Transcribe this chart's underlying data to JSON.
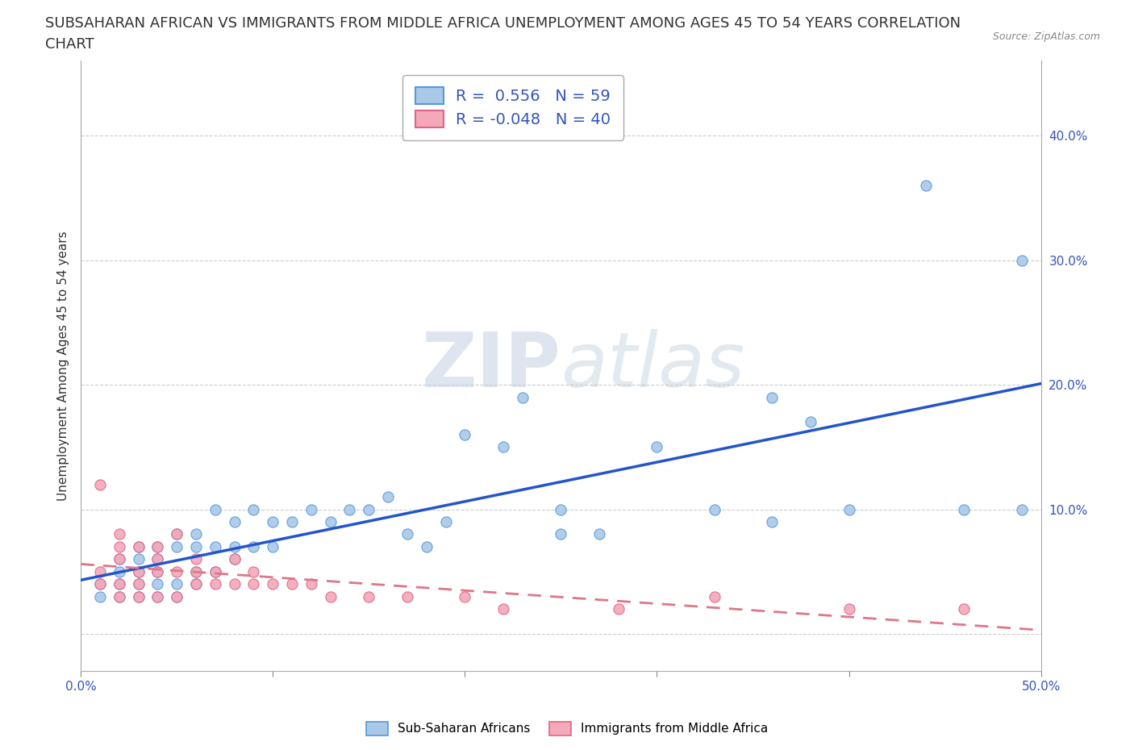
{
  "title_line1": "SUBSAHARAN AFRICAN VS IMMIGRANTS FROM MIDDLE AFRICA UNEMPLOYMENT AMONG AGES 45 TO 54 YEARS CORRELATION",
  "title_line2": "CHART",
  "source_text": "Source: ZipAtlas.com",
  "ylabel": "Unemployment Among Ages 45 to 54 years",
  "xlim": [
    0.0,
    0.5
  ],
  "ylim": [
    -0.03,
    0.46
  ],
  "xticks": [
    0.0,
    0.1,
    0.2,
    0.3,
    0.4,
    0.5
  ],
  "xticklabels": [
    "0.0%",
    "",
    "",
    "",
    "",
    "50.0%"
  ],
  "yticks": [
    0.0,
    0.1,
    0.2,
    0.3,
    0.4
  ],
  "yticklabels": [
    "",
    "10.0%",
    "20.0%",
    "30.0%",
    "40.0%"
  ],
  "r_blue": 0.556,
  "n_blue": 59,
  "r_pink": -0.048,
  "n_pink": 40,
  "blue_color": "#aac8e8",
  "pink_color": "#f4a8b8",
  "blue_line_color": "#2255cc",
  "pink_line_color": "#dd7788",
  "blue_edge_color": "#5599dd",
  "pink_edge_color": "#dd6688",
  "watermark_top": "ZIP",
  "watermark_bottom": "atlas",
  "legend_label_blue": "Sub-Saharan Africans",
  "legend_label_pink": "Immigrants from Middle Africa",
  "blue_scatter_x": [
    0.01,
    0.01,
    0.02,
    0.02,
    0.02,
    0.02,
    0.03,
    0.03,
    0.03,
    0.03,
    0.03,
    0.04,
    0.04,
    0.04,
    0.04,
    0.04,
    0.05,
    0.05,
    0.05,
    0.05,
    0.06,
    0.06,
    0.06,
    0.06,
    0.07,
    0.07,
    0.07,
    0.08,
    0.08,
    0.08,
    0.09,
    0.09,
    0.1,
    0.1,
    0.11,
    0.12,
    0.13,
    0.14,
    0.15,
    0.16,
    0.17,
    0.18,
    0.19,
    0.2,
    0.22,
    0.23,
    0.25,
    0.25,
    0.27,
    0.3,
    0.33,
    0.36,
    0.36,
    0.38,
    0.4,
    0.44,
    0.46,
    0.49,
    0.49
  ],
  "blue_scatter_y": [
    0.03,
    0.04,
    0.03,
    0.04,
    0.05,
    0.06,
    0.03,
    0.04,
    0.05,
    0.06,
    0.07,
    0.03,
    0.04,
    0.05,
    0.06,
    0.07,
    0.03,
    0.04,
    0.07,
    0.08,
    0.04,
    0.05,
    0.07,
    0.08,
    0.05,
    0.07,
    0.1,
    0.06,
    0.07,
    0.09,
    0.07,
    0.1,
    0.07,
    0.09,
    0.09,
    0.1,
    0.09,
    0.1,
    0.1,
    0.11,
    0.08,
    0.07,
    0.09,
    0.16,
    0.15,
    0.19,
    0.08,
    0.1,
    0.08,
    0.15,
    0.1,
    0.19,
    0.09,
    0.17,
    0.1,
    0.36,
    0.1,
    0.1,
    0.3
  ],
  "pink_scatter_x": [
    0.01,
    0.01,
    0.01,
    0.02,
    0.02,
    0.02,
    0.02,
    0.02,
    0.03,
    0.03,
    0.03,
    0.03,
    0.04,
    0.04,
    0.04,
    0.04,
    0.05,
    0.05,
    0.05,
    0.06,
    0.06,
    0.06,
    0.07,
    0.07,
    0.08,
    0.08,
    0.09,
    0.09,
    0.1,
    0.11,
    0.12,
    0.13,
    0.15,
    0.17,
    0.2,
    0.22,
    0.28,
    0.33,
    0.4,
    0.46
  ],
  "pink_scatter_y": [
    0.04,
    0.05,
    0.12,
    0.03,
    0.04,
    0.06,
    0.07,
    0.08,
    0.03,
    0.04,
    0.05,
    0.07,
    0.03,
    0.05,
    0.06,
    0.07,
    0.03,
    0.05,
    0.08,
    0.04,
    0.05,
    0.06,
    0.04,
    0.05,
    0.04,
    0.06,
    0.04,
    0.05,
    0.04,
    0.04,
    0.04,
    0.03,
    0.03,
    0.03,
    0.03,
    0.02,
    0.02,
    0.03,
    0.02,
    0.02
  ],
  "grid_color": "#cccccc",
  "background_color": "#ffffff",
  "title_fontsize": 13,
  "axis_label_fontsize": 11,
  "tick_fontsize": 11,
  "legend_fontsize": 13
}
